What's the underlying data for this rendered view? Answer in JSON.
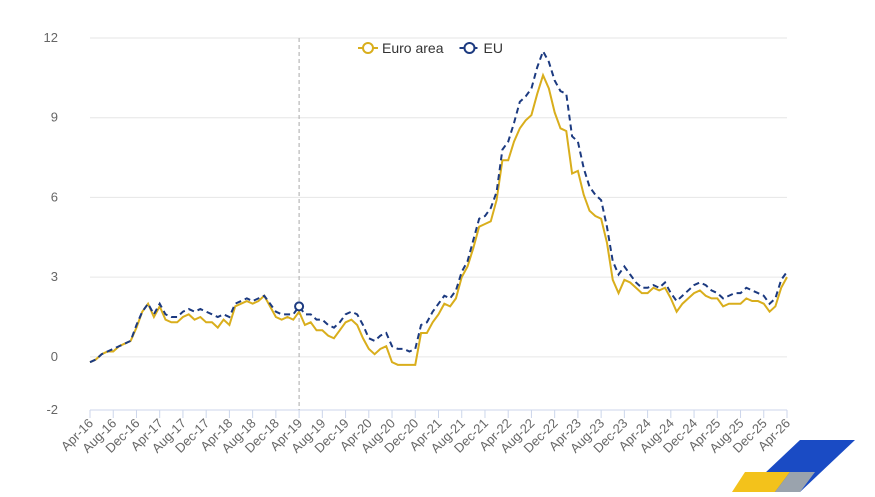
{
  "chart_data": {
    "type": "line",
    "categories": [
      "Apr-16",
      null,
      null,
      null,
      "Aug-16",
      null,
      null,
      null,
      "Dec-16",
      null,
      null,
      null,
      "Apr-17",
      null,
      null,
      null,
      "Aug-17",
      null,
      null,
      null,
      "Dec-17",
      null,
      null,
      null,
      "Apr-18",
      null,
      null,
      null,
      "Aug-18",
      null,
      null,
      null,
      "Dec-18",
      null,
      null,
      null,
      "Apr-19",
      null,
      null,
      null,
      "Aug-19",
      null,
      null,
      null,
      "Dec-19",
      null,
      null,
      null,
      "Apr-20",
      null,
      null,
      null,
      "Aug-20",
      null,
      null,
      null,
      "Dec-20",
      null,
      null,
      null,
      "Apr-21",
      null,
      null,
      null,
      "Aug-21",
      null,
      null,
      null,
      "Dec-21",
      null,
      null,
      null,
      "Apr-22",
      null,
      null,
      null,
      "Aug-22",
      null,
      null,
      null,
      "Dec-22",
      null,
      null,
      null,
      "Apr-23",
      null,
      null,
      null,
      "Aug-23",
      null,
      null,
      null,
      "Dec-23",
      null,
      null,
      null,
      "Apr-24",
      null,
      null,
      null,
      "Aug-24",
      null,
      null,
      null,
      "Dec-24",
      null,
      null,
      null,
      "Apr-25",
      null,
      null,
      null,
      "Aug-25",
      null,
      null,
      null,
      "Dec-25",
      null,
      null,
      null,
      "Apr-26"
    ],
    "series": [
      {
        "name": "Euro area",
        "color": "#d9ae1c",
        "dashed": false,
        "values": [
          -0.2,
          -0.1,
          0.1,
          0.2,
          0.2,
          0.4,
          0.5,
          0.6,
          1.1,
          1.7,
          2.0,
          1.5,
          1.9,
          1.4,
          1.3,
          1.3,
          1.5,
          1.6,
          1.4,
          1.5,
          1.3,
          1.3,
          1.1,
          1.4,
          1.2,
          1.9,
          2.0,
          2.1,
          2.0,
          2.1,
          2.3,
          1.9,
          1.5,
          1.4,
          1.5,
          1.4,
          1.7,
          1.2,
          1.3,
          1.0,
          1.0,
          0.8,
          0.7,
          1.0,
          1.3,
          1.4,
          1.2,
          0.7,
          0.3,
          0.1,
          0.3,
          0.4,
          -0.2,
          -0.3,
          -0.3,
          -0.3,
          -0.3,
          0.9,
          0.9,
          1.3,
          1.6,
          2.0,
          1.9,
          2.2,
          3.0,
          3.4,
          4.1,
          4.9,
          5.0,
          5.1,
          5.9,
          7.4,
          7.4,
          8.1,
          8.6,
          8.9,
          9.1,
          9.9,
          10.6,
          10.1,
          9.2,
          8.6,
          8.5,
          6.9,
          7.0,
          6.1,
          5.5,
          5.3,
          5.2,
          4.3,
          2.9,
          2.4,
          2.9,
          2.8,
          2.6,
          2.4,
          2.4,
          2.6,
          2.5,
          2.6,
          2.2,
          1.7,
          2.0,
          2.2,
          2.4,
          2.5,
          2.3,
          2.2,
          2.2,
          1.9,
          2.0,
          2.0,
          2.0,
          2.2,
          2.1,
          2.1,
          2.0,
          1.7,
          1.9,
          2.6,
          3.0
        ]
      },
      {
        "name": "EU",
        "color": "#1c3a80",
        "dashed": true,
        "values": [
          -0.2,
          -0.1,
          0.1,
          0.2,
          0.3,
          0.4,
          0.5,
          0.6,
          1.2,
          1.7,
          2.0,
          1.6,
          2.0,
          1.6,
          1.5,
          1.5,
          1.7,
          1.8,
          1.7,
          1.8,
          1.7,
          1.6,
          1.5,
          1.6,
          1.5,
          2.0,
          2.1,
          2.2,
          2.1,
          2.2,
          2.3,
          2.0,
          1.7,
          1.6,
          1.6,
          1.6,
          1.9,
          1.6,
          1.6,
          1.4,
          1.4,
          1.2,
          1.1,
          1.3,
          1.6,
          1.7,
          1.6,
          1.2,
          0.7,
          0.6,
          0.8,
          0.9,
          0.4,
          0.3,
          0.3,
          0.2,
          0.3,
          1.2,
          1.3,
          1.7,
          2.0,
          2.3,
          2.2,
          2.5,
          3.2,
          3.6,
          4.4,
          5.2,
          5.3,
          5.6,
          6.2,
          7.8,
          8.1,
          8.8,
          9.6,
          9.8,
          10.1,
          10.9,
          11.5,
          11.1,
          10.4,
          10.0,
          9.9,
          8.3,
          8.1,
          7.1,
          6.4,
          6.1,
          5.9,
          4.9,
          3.6,
          3.1,
          3.4,
          3.1,
          2.8,
          2.6,
          2.6,
          2.7,
          2.6,
          2.8,
          2.4,
          2.1,
          2.3,
          2.5,
          2.7,
          2.8,
          2.7,
          2.5,
          2.4,
          2.2,
          2.3,
          2.4,
          2.4,
          2.6,
          2.5,
          2.4,
          2.3,
          2.0,
          2.2,
          2.9,
          3.2
        ]
      }
    ],
    "ylim": [
      -2,
      12
    ],
    "yticks": [
      -2,
      0,
      3,
      6,
      9,
      12
    ],
    "grid": true
  }
}
